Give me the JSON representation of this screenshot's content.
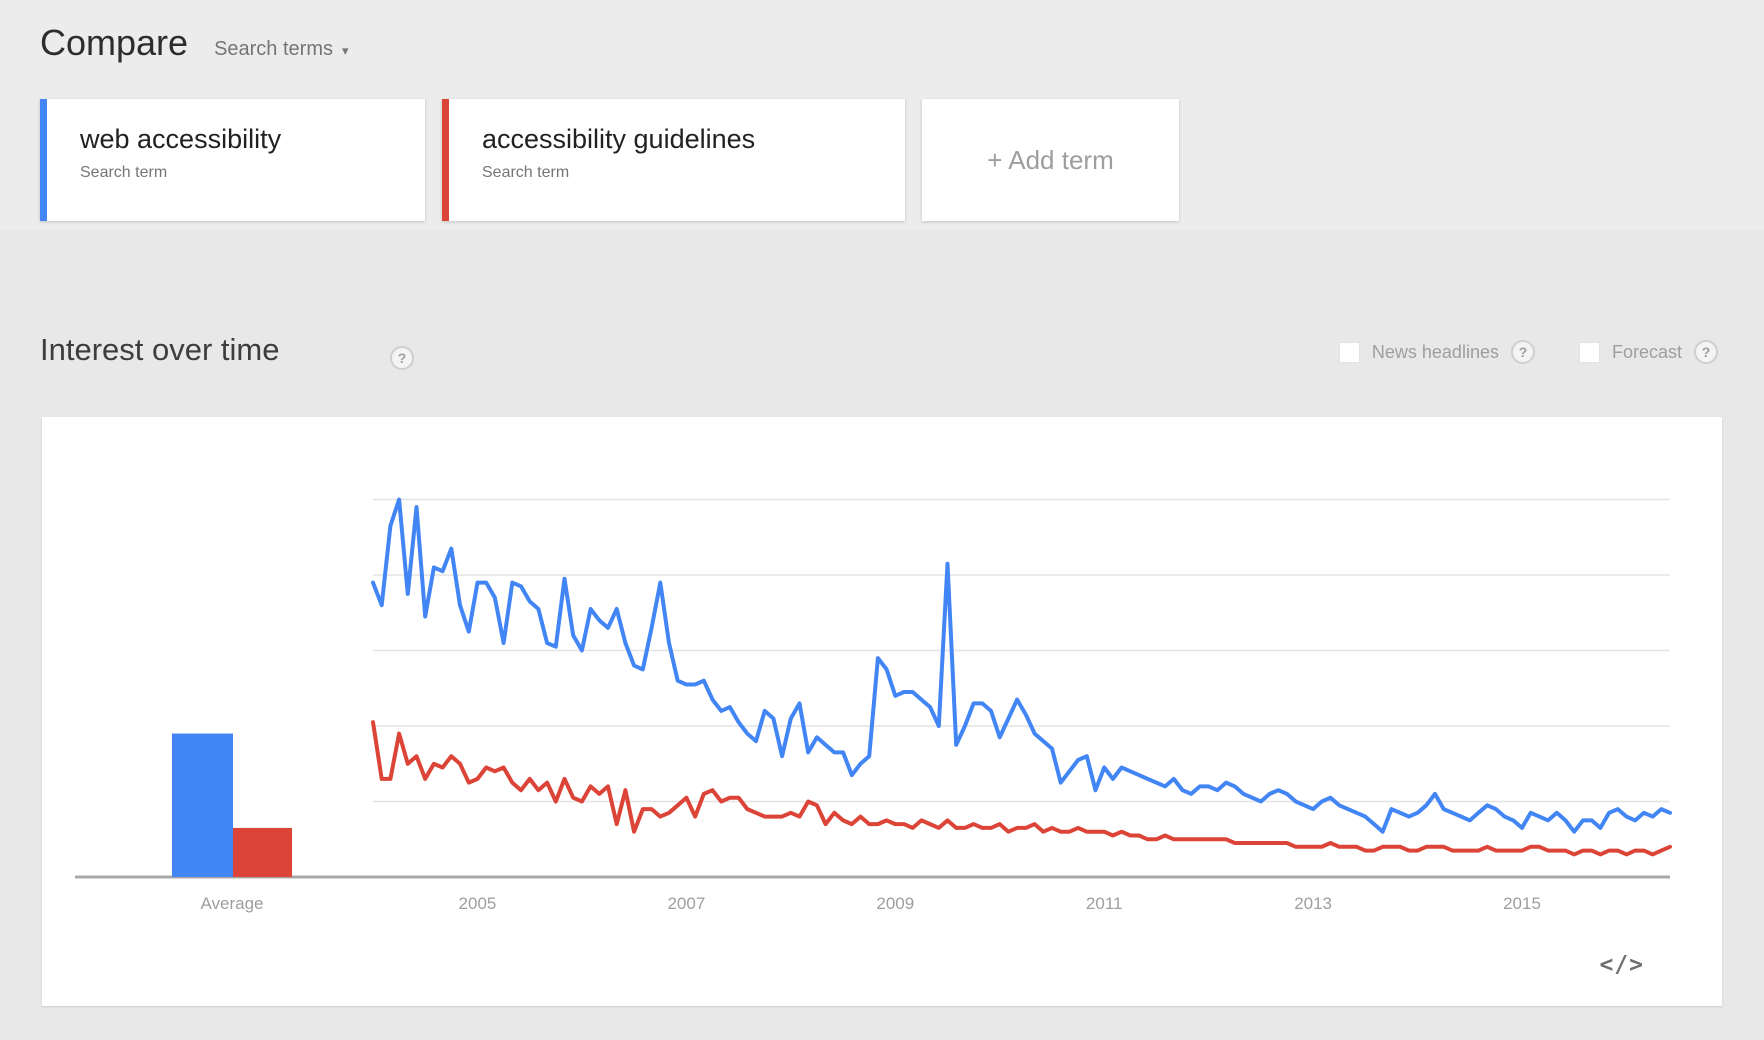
{
  "header": {
    "title": "Compare",
    "subtitle": "Search terms",
    "caret": "▾"
  },
  "terms": [
    {
      "label": "web accessibility",
      "sublabel": "Search term",
      "color": "#4285f4"
    },
    {
      "label": "accessibility guidelines",
      "sublabel": "Search term",
      "color": "#db4437"
    }
  ],
  "add_term": {
    "label": "+ Add term"
  },
  "section": {
    "title": "Interest over time",
    "help_glyph": "?",
    "checkboxes": [
      {
        "label": "News headlines",
        "checked": false
      },
      {
        "label": "Forecast",
        "checked": false
      }
    ]
  },
  "embed": {
    "icon": "</>"
  },
  "chart_data": {
    "type": "line",
    "title": "Interest over time",
    "xlabel": "",
    "ylabel": "",
    "x_start": "2004-01",
    "x_end": "2016-06",
    "points_per_series": 150,
    "x_tick_labels": [
      "2005",
      "2007",
      "2009",
      "2011",
      "2013",
      "2015"
    ],
    "ylim": [
      0,
      100
    ],
    "gridlines": [
      20,
      40,
      60,
      80,
      100
    ],
    "grid": "horizontal-only-unlabeled",
    "legend_position": "none",
    "colors": {
      "axis": "#a8a8a8",
      "grid": "#e3e3e3",
      "tick_text": "#9e9e9e"
    },
    "average_bars": {
      "label": "Average",
      "values": [
        {
          "name": "web accessibility",
          "value": 38,
          "color": "#4285f4"
        },
        {
          "name": "accessibility guidelines",
          "value": 13,
          "color": "#db4437"
        }
      ]
    },
    "series": [
      {
        "name": "web accessibility",
        "color": "#4285f4",
        "values": [
          78,
          72,
          93,
          100,
          75,
          98,
          69,
          82,
          81,
          87,
          72,
          65,
          78,
          78,
          74,
          62,
          78,
          77,
          73,
          71,
          62,
          61,
          79,
          64,
          60,
          71,
          68,
          66,
          71,
          62,
          56,
          55,
          66,
          78,
          62,
          52,
          51,
          51,
          52,
          47,
          44,
          45,
          41,
          38,
          36,
          44,
          42,
          32,
          42,
          46,
          33,
          37,
          35,
          33,
          33,
          27,
          30,
          32,
          58,
          55,
          48,
          49,
          49,
          47,
          45,
          40,
          83,
          35,
          40,
          46,
          46,
          44,
          37,
          42,
          47,
          43,
          38,
          36,
          34,
          25,
          28,
          31,
          32,
          23,
          29,
          26,
          29,
          28,
          27,
          26,
          25,
          24,
          26,
          23,
          22,
          24,
          24,
          23,
          25,
          24,
          22,
          21,
          20,
          22,
          23,
          22,
          20,
          19,
          18,
          20,
          21,
          19,
          18,
          17,
          16,
          14,
          12,
          18,
          17,
          16,
          17,
          19,
          22,
          18,
          17,
          16,
          15,
          17,
          19,
          18,
          16,
          15,
          13,
          17,
          16,
          15,
          17,
          15,
          12,
          15,
          15,
          13,
          17,
          18,
          16,
          15,
          17,
          16,
          18,
          17
        ]
      },
      {
        "name": "accessibility guidelines",
        "color": "#db4437",
        "values": [
          41,
          26,
          26,
          38,
          30,
          32,
          26,
          30,
          29,
          32,
          30,
          25,
          26,
          29,
          28,
          29,
          25,
          23,
          26,
          23,
          25,
          20,
          26,
          21,
          20,
          24,
          22,
          24,
          14,
          23,
          12,
          18,
          18,
          16,
          17,
          19,
          21,
          16,
          22,
          23,
          20,
          21,
          21,
          18,
          17,
          16,
          16,
          16,
          17,
          16,
          20,
          19,
          14,
          17,
          15,
          14,
          16,
          14,
          14,
          15,
          14,
          14,
          13,
          15,
          14,
          13,
          15,
          13,
          13,
          14,
          13,
          13,
          14,
          12,
          13,
          13,
          14,
          12,
          13,
          12,
          12,
          13,
          12,
          12,
          12,
          11,
          12,
          11,
          11,
          10,
          10,
          11,
          10,
          10,
          10,
          10,
          10,
          10,
          10,
          9,
          9,
          9,
          9,
          9,
          9,
          9,
          8,
          8,
          8,
          8,
          9,
          8,
          8,
          8,
          7,
          7,
          8,
          8,
          8,
          7,
          7,
          8,
          8,
          8,
          7,
          7,
          7,
          7,
          8,
          7,
          7,
          7,
          7,
          8,
          8,
          7,
          7,
          7,
          6,
          7,
          7,
          6,
          7,
          7,
          6,
          7,
          7,
          6,
          7,
          8
        ]
      }
    ]
  }
}
